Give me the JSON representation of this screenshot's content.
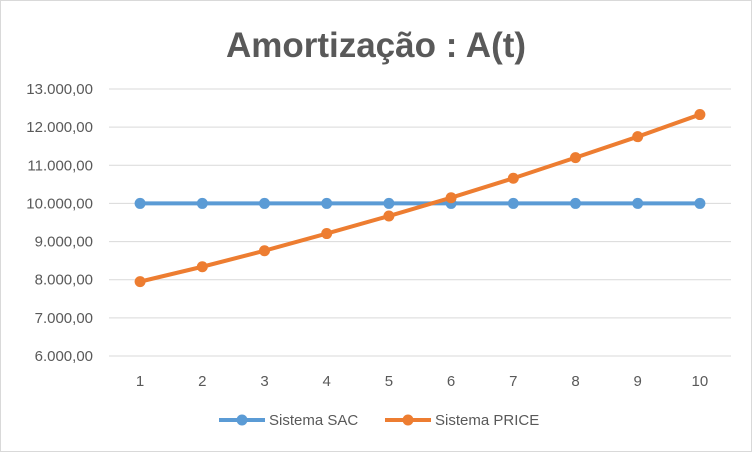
{
  "chart_data": {
    "type": "line",
    "title": "Amortização : A(t)",
    "xlabel": "",
    "ylabel": "",
    "categories": [
      "1",
      "2",
      "3",
      "4",
      "5",
      "6",
      "7",
      "8",
      "9",
      "10"
    ],
    "ylim": [
      6000,
      13000
    ],
    "yticks": [
      6000,
      7000,
      8000,
      9000,
      10000,
      11000,
      12000,
      13000
    ],
    "ytick_labels": [
      "6.000,00",
      "7.000,00",
      "8.000,00",
      "9.000,00",
      "10.000,00",
      "11.000,00",
      "12.000,00",
      "13.000,00"
    ],
    "grid": true,
    "legend_position": "bottom",
    "series": [
      {
        "name": "Sistema SAC",
        "color": "#5b9bd5",
        "values": [
          10000,
          10000,
          10000,
          10000,
          10000,
          10000,
          10000,
          10000,
          10000,
          10000
        ]
      },
      {
        "name": "Sistema PRICE",
        "color": "#ed7d31",
        "values": [
          7950,
          8340,
          8760,
          9210,
          9670,
          10150,
          10660,
          11200,
          11750,
          12330
        ]
      }
    ]
  }
}
